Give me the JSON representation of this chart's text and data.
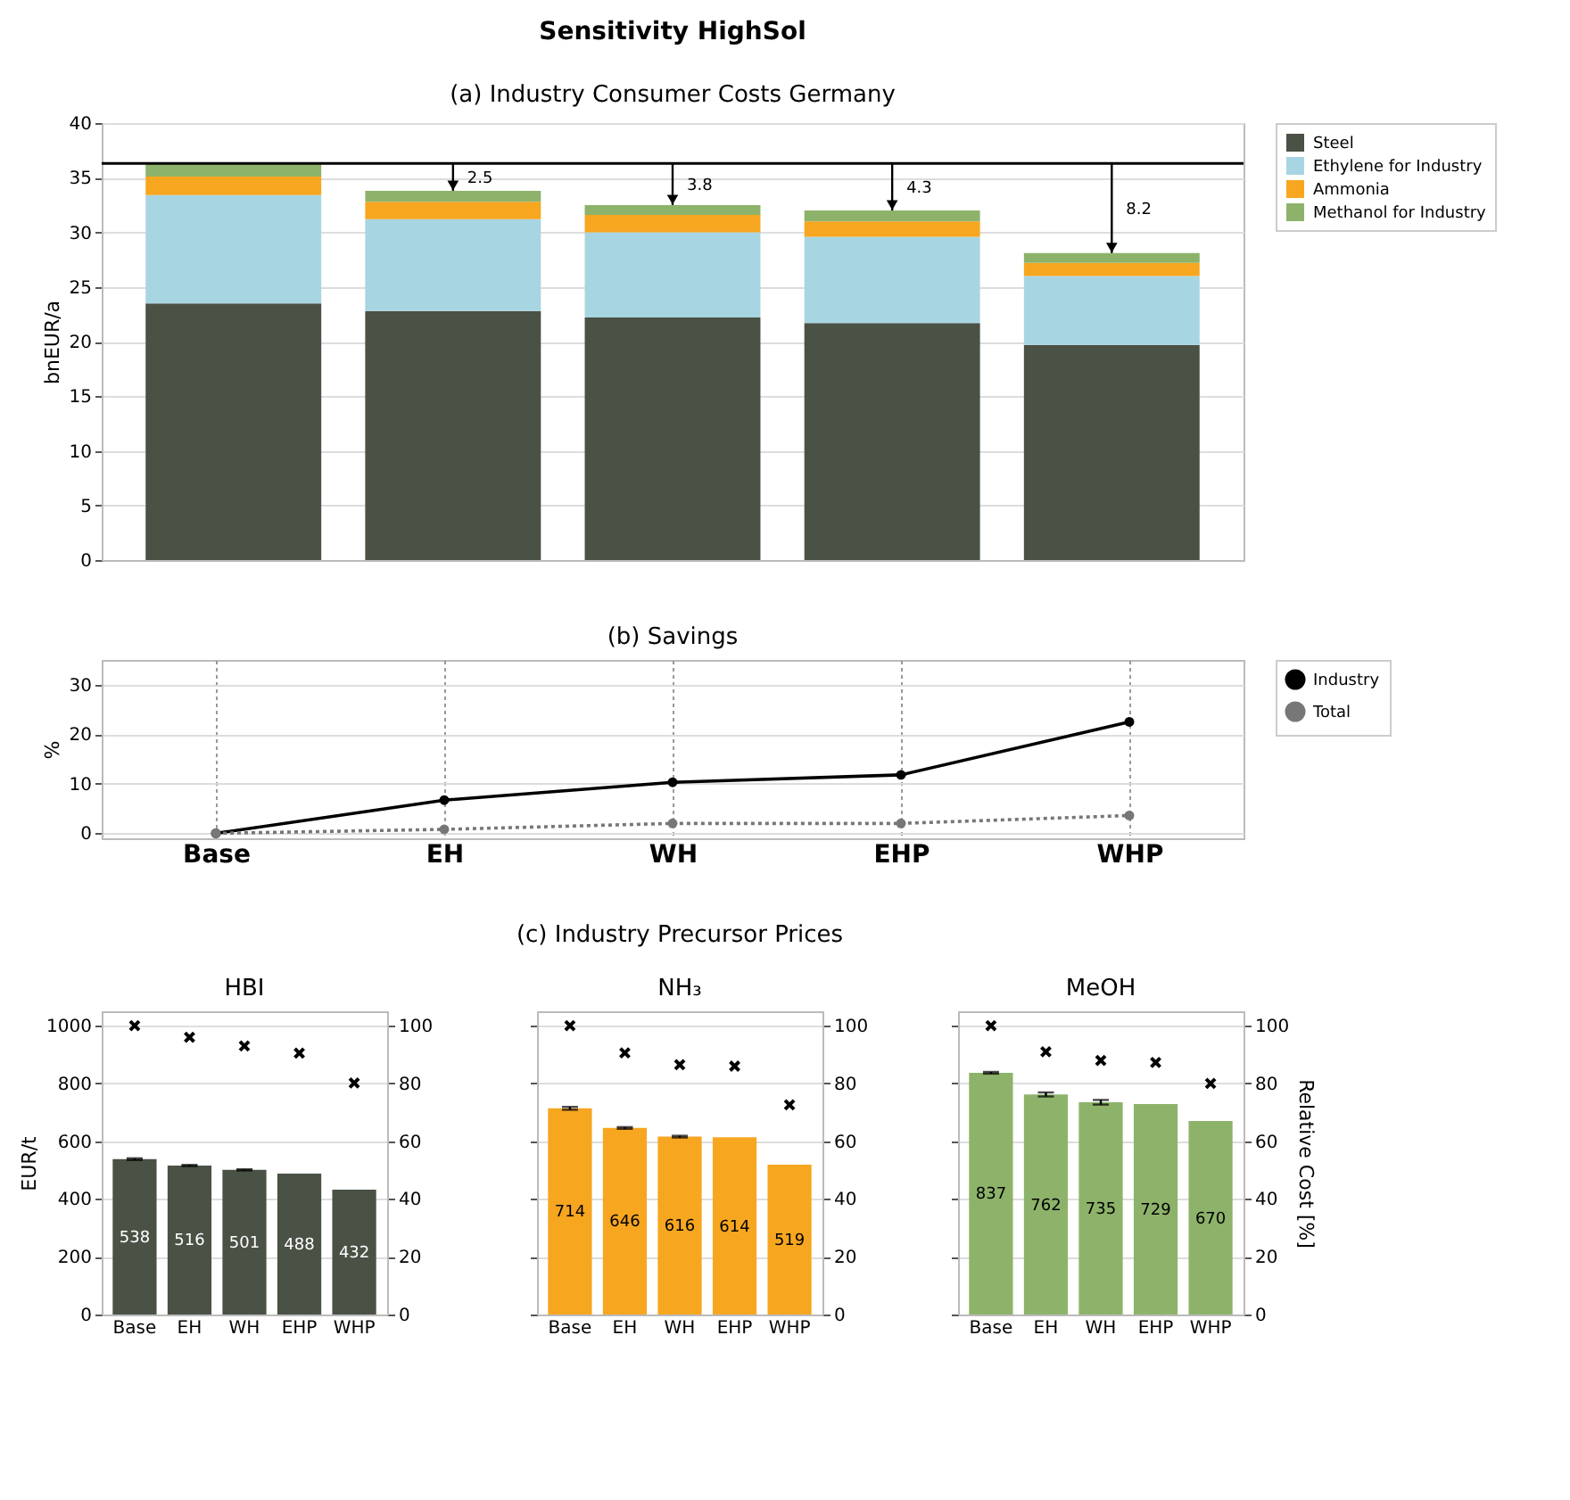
{
  "chart_data": [
    {
      "type": "bar",
      "title": "Sensitivity HighSol",
      "subtitle": "(a) Industry Consumer Costs Germany",
      "ylabel": "bnEUR/a",
      "categories": [
        "Base",
        "EH",
        "WH",
        "EHP",
        "WHP"
      ],
      "stacked": true,
      "series": [
        {
          "name": "Steel",
          "color": "#4a5145",
          "values": [
            23.5,
            22.8,
            22.2,
            21.7,
            19.7
          ]
        },
        {
          "name": "Ethylene for Industry",
          "color": "#a8d5e2",
          "values": [
            9.9,
            8.4,
            7.8,
            7.9,
            6.3
          ]
        },
        {
          "name": "Ammonia",
          "color": "#f7a620",
          "values": [
            1.7,
            1.6,
            1.6,
            1.4,
            1.2
          ]
        },
        {
          "name": "Methanol for Industry",
          "color": "#8db36a",
          "values": [
            1.2,
            1.0,
            0.9,
            1.0,
            0.9
          ]
        }
      ],
      "ylim": [
        0,
        40
      ],
      "yticks": [
        0,
        5,
        10,
        15,
        20,
        25,
        30,
        35,
        40
      ],
      "grid": "y",
      "legend": "top right",
      "tick_labels": "y",
      "ref_lines": [
        {
          "axis": "y",
          "value": 36.3,
          "color": "#000000"
        }
      ],
      "annotations": [
        {
          "text": "2.5",
          "x": "EH",
          "y": 33.8
        },
        {
          "text": "3.8",
          "x": "WH",
          "y": 32.5
        },
        {
          "text": "4.3",
          "x": "EHP",
          "y": 32.0
        },
        {
          "text": "8.2",
          "x": "WHP",
          "y": 28.1
        }
      ]
    },
    {
      "type": "line",
      "title": "(b) Savings",
      "ylabel": "%",
      "categories": [
        "Base",
        "EH",
        "WH",
        "EHP",
        "WHP"
      ],
      "series": [
        {
          "name": "Industry",
          "color": "#000000",
          "values": [
            0,
            6.7,
            10.3,
            11.8,
            22.5
          ],
          "line_style": "solid"
        },
        {
          "name": "Total",
          "color": "#777777",
          "values": [
            0,
            0.8,
            2.0,
            2.0,
            3.6
          ],
          "line_style": "dotted"
        }
      ],
      "ylim": [
        -1,
        35
      ],
      "yticks": [
        0,
        10,
        20,
        30
      ],
      "grid": true,
      "legend": "top right",
      "marker": "circle"
    },
    {
      "type": "bar",
      "title": "HBI",
      "ylabel": "EUR/t",
      "categories": [
        "Base",
        "EH",
        "WH",
        "EHP",
        "WHP"
      ],
      "series": [
        {
          "color": "#4a5145",
          "values": [
            538,
            516,
            501,
            488,
            432
          ],
          "errors": [
            3,
            2,
            2,
            null,
            null
          ],
          "value_labels": [
            "538",
            "516",
            "501",
            "488",
            "432"
          ]
        },
        {
          "type": "scatter",
          "axis": "y2",
          "color": "#000000",
          "marker": "cross",
          "values": [
            100,
            96,
            93,
            90.5,
            80.2
          ]
        }
      ],
      "ylim": [
        0,
        1050
      ],
      "yticks": [
        0,
        200,
        400,
        600,
        800,
        1000
      ],
      "y2lim": [
        0,
        105
      ],
      "y2ticks": [
        0,
        20,
        40,
        60,
        80,
        100
      ],
      "grid": "y"
    },
    {
      "type": "bar",
      "title": "NH₃",
      "categories": [
        "Base",
        "EH",
        "WH",
        "EHP",
        "WHP"
      ],
      "series": [
        {
          "color": "#f7a620",
          "values": [
            714,
            646,
            616,
            614,
            519
          ],
          "errors": [
            5,
            3,
            3,
            null,
            null
          ],
          "value_labels": [
            "714",
            "646",
            "616",
            "614",
            "519"
          ]
        },
        {
          "type": "scatter",
          "axis": "y2",
          "color": "#000000",
          "marker": "cross",
          "values": [
            100,
            90.6,
            86.5,
            86,
            72.6
          ]
        }
      ],
      "ylim": [
        0,
        1050
      ],
      "y2lim": [
        0,
        105
      ],
      "y2ticks": [
        0,
        20,
        40,
        60,
        80,
        100
      ],
      "grid": "y",
      "annotations": [
        "(c) Industry Precursor Prices"
      ]
    },
    {
      "type": "bar",
      "title": "MeOH",
      "y2label": "Relative Cost [%]",
      "categories": [
        "Base",
        "EH",
        "WH",
        "EHP",
        "WHP"
      ],
      "series": [
        {
          "color": "#8db36a",
          "values": [
            837,
            762,
            735,
            729,
            670
          ],
          "errors": [
            3,
            7,
            8,
            null,
            null
          ],
          "value_labels": [
            "837",
            "762",
            "735",
            "729",
            "670"
          ]
        },
        {
          "type": "scatter",
          "axis": "y2",
          "color": "#000000",
          "marker": "cross",
          "values": [
            100,
            91,
            88,
            87.3,
            80
          ]
        }
      ],
      "ylim": [
        0,
        1050
      ],
      "y2lim": [
        0,
        105
      ],
      "y2ticks": [
        0,
        20,
        40,
        60,
        80,
        100
      ],
      "grid": "y"
    }
  ]
}
